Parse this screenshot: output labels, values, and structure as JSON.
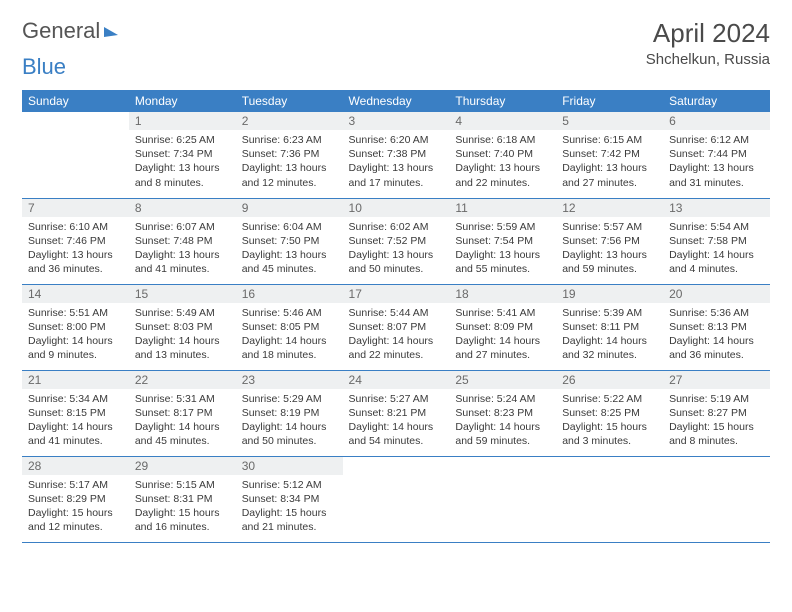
{
  "brand": {
    "part1": "General",
    "part2": "Blue"
  },
  "title": "April 2024",
  "location": "Shchelkun, Russia",
  "colors": {
    "header_bg": "#3a7fc4",
    "header_fg": "#ffffff",
    "daynum_bg": "#eef0f1",
    "daynum_fg": "#6a6a6a",
    "rule": "#3a7fc4",
    "text": "#3a3a3a"
  },
  "typography": {
    "title_pt": 26,
    "location_pt": 15,
    "header_pt": 12,
    "daynum_pt": 12,
    "body_pt": 10.5
  },
  "weekdays": [
    "Sunday",
    "Monday",
    "Tuesday",
    "Wednesday",
    "Thursday",
    "Friday",
    "Saturday"
  ],
  "layout": {
    "first_weekday_index": 1,
    "days_in_month": 30
  },
  "days": {
    "1": {
      "sunrise": "6:25 AM",
      "sunset": "7:34 PM",
      "daylight": "13 hours and 8 minutes."
    },
    "2": {
      "sunrise": "6:23 AM",
      "sunset": "7:36 PM",
      "daylight": "13 hours and 12 minutes."
    },
    "3": {
      "sunrise": "6:20 AM",
      "sunset": "7:38 PM",
      "daylight": "13 hours and 17 minutes."
    },
    "4": {
      "sunrise": "6:18 AM",
      "sunset": "7:40 PM",
      "daylight": "13 hours and 22 minutes."
    },
    "5": {
      "sunrise": "6:15 AM",
      "sunset": "7:42 PM",
      "daylight": "13 hours and 27 minutes."
    },
    "6": {
      "sunrise": "6:12 AM",
      "sunset": "7:44 PM",
      "daylight": "13 hours and 31 minutes."
    },
    "7": {
      "sunrise": "6:10 AM",
      "sunset": "7:46 PM",
      "daylight": "13 hours and 36 minutes."
    },
    "8": {
      "sunrise": "6:07 AM",
      "sunset": "7:48 PM",
      "daylight": "13 hours and 41 minutes."
    },
    "9": {
      "sunrise": "6:04 AM",
      "sunset": "7:50 PM",
      "daylight": "13 hours and 45 minutes."
    },
    "10": {
      "sunrise": "6:02 AM",
      "sunset": "7:52 PM",
      "daylight": "13 hours and 50 minutes."
    },
    "11": {
      "sunrise": "5:59 AM",
      "sunset": "7:54 PM",
      "daylight": "13 hours and 55 minutes."
    },
    "12": {
      "sunrise": "5:57 AM",
      "sunset": "7:56 PM",
      "daylight": "13 hours and 59 minutes."
    },
    "13": {
      "sunrise": "5:54 AM",
      "sunset": "7:58 PM",
      "daylight": "14 hours and 4 minutes."
    },
    "14": {
      "sunrise": "5:51 AM",
      "sunset": "8:00 PM",
      "daylight": "14 hours and 9 minutes."
    },
    "15": {
      "sunrise": "5:49 AM",
      "sunset": "8:03 PM",
      "daylight": "14 hours and 13 minutes."
    },
    "16": {
      "sunrise": "5:46 AM",
      "sunset": "8:05 PM",
      "daylight": "14 hours and 18 minutes."
    },
    "17": {
      "sunrise": "5:44 AM",
      "sunset": "8:07 PM",
      "daylight": "14 hours and 22 minutes."
    },
    "18": {
      "sunrise": "5:41 AM",
      "sunset": "8:09 PM",
      "daylight": "14 hours and 27 minutes."
    },
    "19": {
      "sunrise": "5:39 AM",
      "sunset": "8:11 PM",
      "daylight": "14 hours and 32 minutes."
    },
    "20": {
      "sunrise": "5:36 AM",
      "sunset": "8:13 PM",
      "daylight": "14 hours and 36 minutes."
    },
    "21": {
      "sunrise": "5:34 AM",
      "sunset": "8:15 PM",
      "daylight": "14 hours and 41 minutes."
    },
    "22": {
      "sunrise": "5:31 AM",
      "sunset": "8:17 PM",
      "daylight": "14 hours and 45 minutes."
    },
    "23": {
      "sunrise": "5:29 AM",
      "sunset": "8:19 PM",
      "daylight": "14 hours and 50 minutes."
    },
    "24": {
      "sunrise": "5:27 AM",
      "sunset": "8:21 PM",
      "daylight": "14 hours and 54 minutes."
    },
    "25": {
      "sunrise": "5:24 AM",
      "sunset": "8:23 PM",
      "daylight": "14 hours and 59 minutes."
    },
    "26": {
      "sunrise": "5:22 AM",
      "sunset": "8:25 PM",
      "daylight": "15 hours and 3 minutes."
    },
    "27": {
      "sunrise": "5:19 AM",
      "sunset": "8:27 PM",
      "daylight": "15 hours and 8 minutes."
    },
    "28": {
      "sunrise": "5:17 AM",
      "sunset": "8:29 PM",
      "daylight": "15 hours and 12 minutes."
    },
    "29": {
      "sunrise": "5:15 AM",
      "sunset": "8:31 PM",
      "daylight": "15 hours and 16 minutes."
    },
    "30": {
      "sunrise": "5:12 AM",
      "sunset": "8:34 PM",
      "daylight": "15 hours and 21 minutes."
    }
  },
  "labels": {
    "sunrise": "Sunrise: ",
    "sunset": "Sunset: ",
    "daylight": "Daylight: "
  }
}
